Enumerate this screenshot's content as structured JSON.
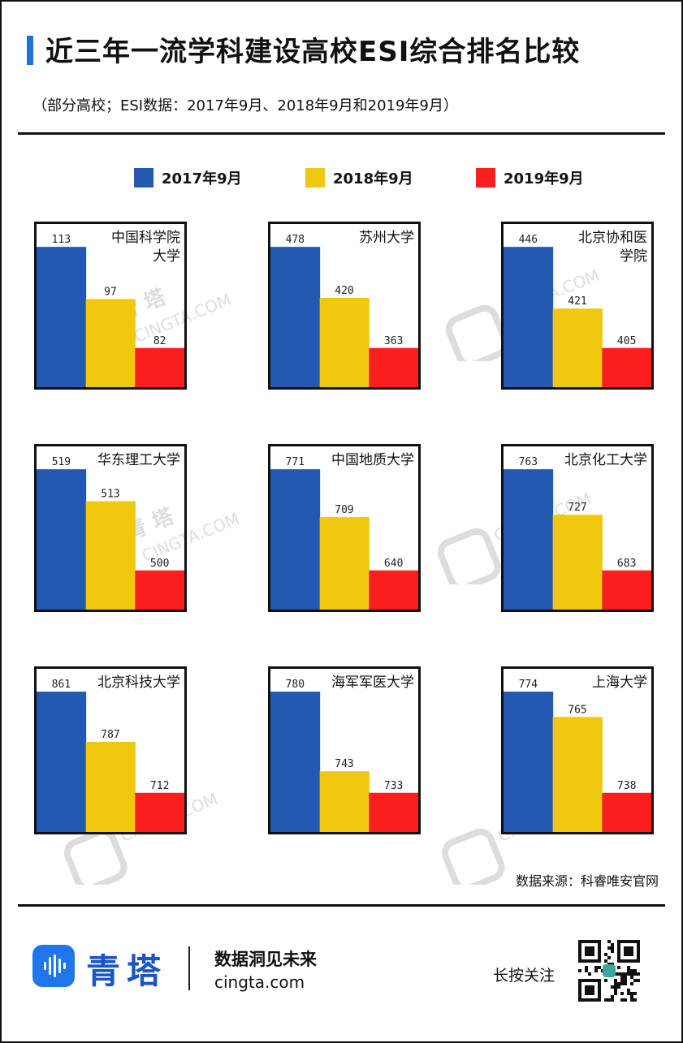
{
  "title": "近三年一流学科建设高校ESI综合排名比较",
  "subtitle": "（部分高校；ESI数据：2017年9月、2018年9月和2019年9月）",
  "source": "数据来源：科睿唯安官网",
  "footer": {
    "brand": "青塔",
    "slogan": "数据洞见未来",
    "url": "cingta.com",
    "follow": "长按关注"
  },
  "watermark": {
    "brand": "青 塔",
    "url": "CINGTA.COM"
  },
  "colors": {
    "s2017": "#2359b0",
    "s2018": "#f0c80f",
    "s2019": "#fa1e1c",
    "accent": "#1f6fe0"
  },
  "chart_data": {
    "type": "bar",
    "series_names": [
      "2017年9月",
      "2018年9月",
      "2019年9月"
    ],
    "panels": [
      {
        "name": "中国科学院\n大学",
        "values": [
          113,
          97,
          82
        ]
      },
      {
        "name": "苏州大学",
        "values": [
          478,
          420,
          363
        ]
      },
      {
        "name": "北京协和医\n学院",
        "values": [
          446,
          421,
          405
        ]
      },
      {
        "name": "华东理工大学",
        "values": [
          519,
          513,
          500
        ]
      },
      {
        "name": "中国地质大学",
        "values": [
          771,
          709,
          640
        ]
      },
      {
        "name": "北京化工大学",
        "values": [
          763,
          727,
          683
        ]
      },
      {
        "name": "北京科技大学",
        "values": [
          861,
          787,
          712
        ]
      },
      {
        "name": "海军军医大学",
        "values": [
          780,
          743,
          733
        ]
      },
      {
        "name": "上海大学",
        "values": [
          774,
          765,
          738
        ]
      }
    ]
  }
}
